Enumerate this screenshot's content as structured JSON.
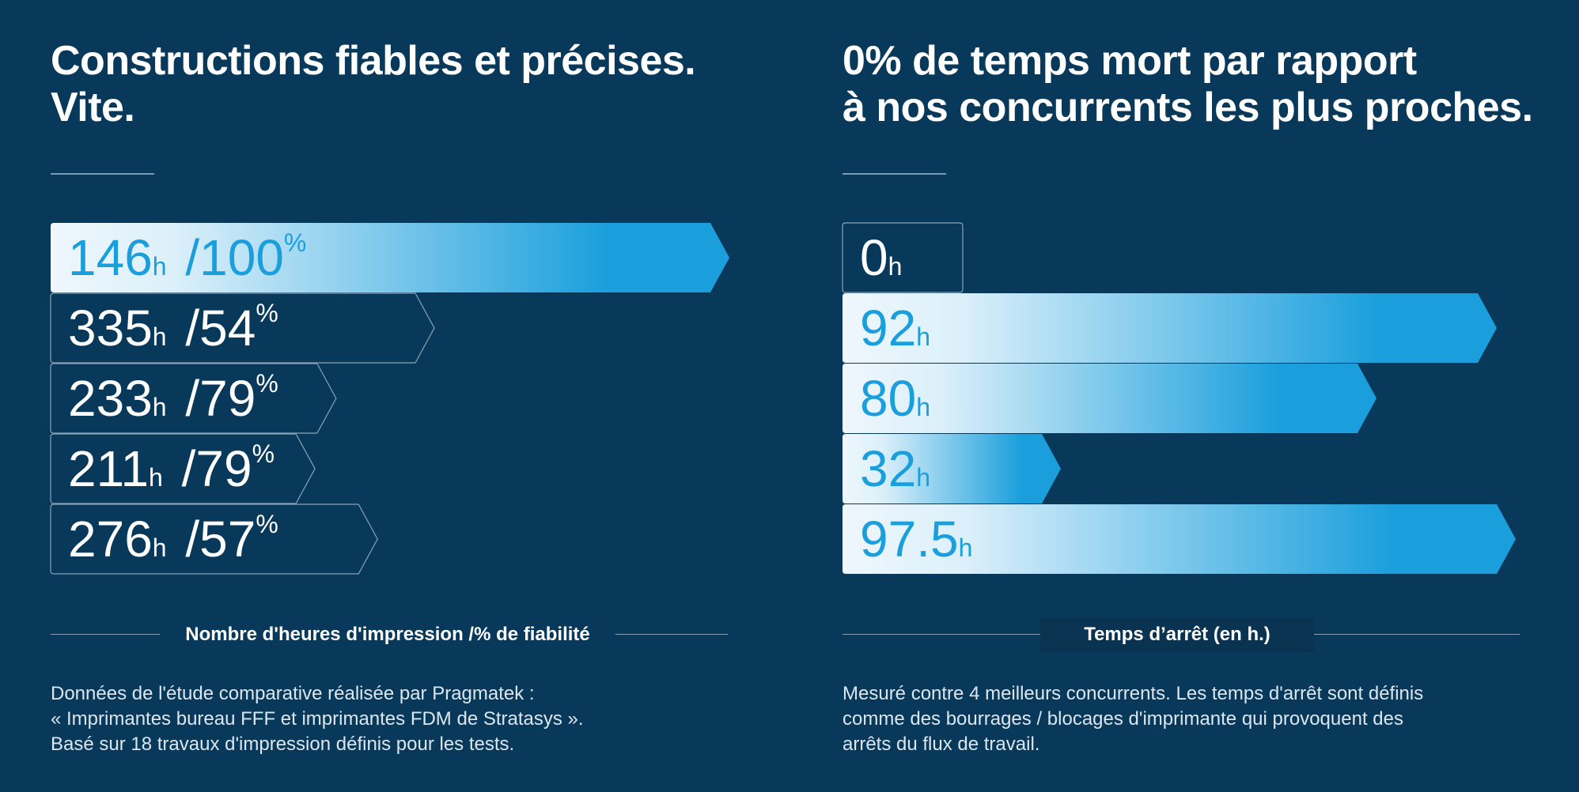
{
  "left": {
    "title_lines": [
      "Constructions fiables et précises.",
      "Vite."
    ],
    "axis_caption": "Nombre d'heures d'impression /% de fiabilité",
    "note_lines": [
      "Données de l'étude comparative réalisée par Pragmatek :",
      "« Imprimantes bureau FFF et imprimantes FDM de Stratasys ».",
      "Basé sur 18 travaux d'impression définis pour les tests."
    ]
  },
  "right": {
    "title_lines": [
      "0% de temps mort par rapport",
      "à nos concurrents les plus proches."
    ],
    "axis_caption": "Temps d’arrêt (en h.)",
    "note_lines": [
      "Mesuré contre 4 meilleurs concurrents. Les temps d'arrêt sont définis",
      "comme des bourrages / blocages d'imprimante qui provoquent des",
      "arrêts du flux de travail."
    ]
  },
  "colors": {
    "background": "#08395a",
    "accent": "#1a9fdc",
    "highlight_start": "#eef7fc",
    "outline": "#8aa3b8",
    "text": "#ffffff"
  },
  "chart_data": [
    {
      "type": "bar",
      "orientation": "horizontal",
      "title": "Constructions fiables et précises. Vite.",
      "xlabel": "Nombre d'heures d'impression /% de fiabilité",
      "ylabel": "",
      "series": [
        {
          "name": "Heures d'impression",
          "values": [
            146,
            335,
            233,
            211,
            276
          ],
          "unit": "h"
        },
        {
          "name": "Fiabilité",
          "values": [
            100,
            54,
            79,
            79,
            57
          ],
          "unit": "%"
        }
      ],
      "highlighted_index": 0,
      "grid": false
    },
    {
      "type": "bar",
      "orientation": "horizontal",
      "title": "0% de temps mort par rapport à nos concurrents les plus proches.",
      "xlabel": "Temps d’arrêt (en h.)",
      "ylabel": "",
      "values": [
        0,
        92,
        80,
        32,
        97.5
      ],
      "value_labels": [
        "0",
        "92",
        "80",
        "32",
        "97.5"
      ],
      "unit": "h",
      "highlighted_index": 0,
      "grid": false
    }
  ]
}
